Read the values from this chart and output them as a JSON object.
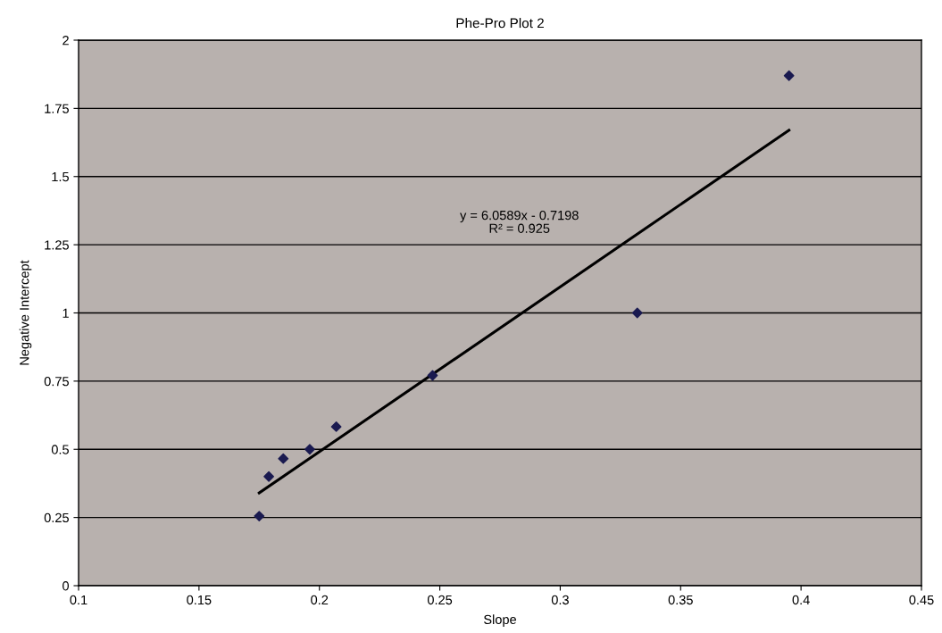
{
  "chart_data": {
    "type": "scatter",
    "title": "Phe-Pro Plot 2",
    "xlabel": "Slope",
    "ylabel": "Negative Intercept",
    "series": [
      {
        "color": "#1a1a50",
        "marker": "diamond",
        "x": [
          0.175,
          0.179,
          0.185,
          0.196,
          0.207,
          0.247,
          0.332,
          0.395
        ],
        "values": [
          0.255,
          0.4,
          0.466,
          0.5,
          0.583,
          0.771,
          1.0,
          1.87
        ]
      },
      {
        "type": "line",
        "color": "#000000",
        "marker": "none",
        "line_style": "solid",
        "x": [
          0.175,
          0.395
        ],
        "values": [
          0.34,
          1.67
        ]
      }
    ],
    "annotations": [
      "y = 6.0589x - 0.7198\nR² = 0.925"
    ],
    "xlim": [
      0.1,
      0.45
    ],
    "xticks": [
      0.1,
      0.15,
      0.2,
      0.25,
      0.3,
      0.35,
      0.4,
      0.45
    ],
    "ylim": [
      0,
      2
    ],
    "yticks": [
      0,
      0.25,
      0.5,
      0.75,
      1,
      1.25,
      1.5,
      1.75,
      2
    ],
    "grid": "y",
    "legend": false
  }
}
